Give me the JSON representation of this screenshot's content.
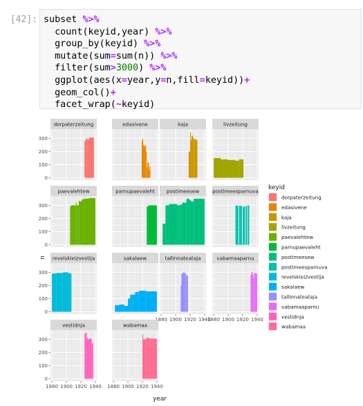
{
  "cell": {
    "prompt": "[42]:",
    "lines": [
      [
        {
          "t": "subset "
        },
        {
          "t": "%>%",
          "c": "op"
        }
      ],
      [
        {
          "t": "  count(keyid,year) "
        },
        {
          "t": "%>%",
          "c": "op"
        }
      ],
      [
        {
          "t": "  group_by(keyid) "
        },
        {
          "t": "%>%",
          "c": "op"
        }
      ],
      [
        {
          "t": "  mutate(sum"
        },
        {
          "t": "=",
          "c": "op"
        },
        {
          "t": "sum(n)) "
        },
        {
          "t": "%>%",
          "c": "op"
        }
      ],
      [
        {
          "t": "  filter(sum"
        },
        {
          "t": ">",
          "c": "op"
        },
        {
          "t": "3000",
          "c": "num"
        },
        {
          "t": ") "
        },
        {
          "t": "%>%",
          "c": "op"
        }
      ],
      [
        {
          "t": "  ggplot(aes(x"
        },
        {
          "t": "=",
          "c": "op"
        },
        {
          "t": "year,y"
        },
        {
          "t": "=",
          "c": "op"
        },
        {
          "t": "n,fill"
        },
        {
          "t": "=",
          "c": "op"
        },
        {
          "t": "keyid))"
        },
        {
          "t": "+",
          "c": "op"
        }
      ],
      [
        {
          "t": "  geom_col()"
        },
        {
          "t": "+",
          "c": "op"
        }
      ],
      [
        {
          "t": "  facet_wrap("
        },
        {
          "t": "~",
          "c": "op"
        },
        {
          "t": "keyid)"
        }
      ]
    ]
  },
  "chart_data": {
    "type": "bar",
    "facet_by": "keyid",
    "xlabel": "year",
    "ylabel": "n",
    "xlim": [
      1878,
      1942
    ],
    "ylim": [
      -18,
      370
    ],
    "x_ticks": [
      1880,
      1900,
      1920,
      1940
    ],
    "y_ticks": [
      0,
      100,
      200,
      300
    ],
    "grid": true,
    "legend": {
      "title": "keyid",
      "position": "right"
    },
    "facets": [
      {
        "name": "dorpaterzeitung",
        "color": "#F8766D",
        "segments": [
          [
            1925,
            1927,
            280
          ],
          [
            1927,
            1929,
            300
          ],
          [
            1929,
            1931,
            290
          ],
          [
            1931,
            1938,
            305
          ]
        ]
      },
      {
        "name": "edasivene",
        "color": "#E58700",
        "segments": [
          [
            1919,
            1920,
            280
          ],
          [
            1920,
            1921,
            300
          ],
          [
            1921,
            1922,
            250
          ],
          [
            1922,
            1924,
            240
          ],
          [
            1924,
            1925,
            250
          ],
          [
            1925,
            1926,
            200
          ],
          [
            1926,
            1927,
            80
          ],
          [
            1927,
            1929,
            115
          ],
          [
            1929,
            1930,
            60
          ],
          [
            1930,
            1931,
            90
          ]
        ]
      },
      {
        "name": "kaja",
        "color": "#C99800",
        "segments": [
          [
            1918,
            1920,
            200
          ],
          [
            1920,
            1921,
            345
          ],
          [
            1921,
            1922,
            285
          ],
          [
            1922,
            1924,
            320
          ],
          [
            1924,
            1926,
            300
          ],
          [
            1926,
            1930,
            290
          ]
        ]
      },
      {
        "name": "livzeitung",
        "color": "#A3A500",
        "segments": [
          [
            1880,
            1890,
            150
          ],
          [
            1890,
            1900,
            140
          ],
          [
            1900,
            1910,
            135
          ],
          [
            1910,
            1915,
            130
          ],
          [
            1915,
            1921,
            140
          ]
        ]
      },
      {
        "name": "paevalehtew",
        "color": "#6BB100",
        "segments": [
          [
            1905,
            1906,
            290
          ],
          [
            1906,
            1913,
            300
          ],
          [
            1913,
            1914,
            320
          ],
          [
            1914,
            1917,
            300
          ],
          [
            1917,
            1918,
            335
          ],
          [
            1918,
            1921,
            330
          ],
          [
            1921,
            1924,
            345
          ],
          [
            1924,
            1931,
            350
          ],
          [
            1931,
            1940,
            355
          ]
        ]
      },
      {
        "name": "parnupaevaleht",
        "color": "#00BA38",
        "segments": [
          [
            1926,
            1928,
            290
          ],
          [
            1928,
            1940,
            300
          ]
        ]
      },
      {
        "name": "postimeesew",
        "color": "#00BF7D",
        "segments": [
          [
            1882,
            1886,
            160
          ],
          [
            1886,
            1891,
            300
          ],
          [
            1891,
            1899,
            310
          ],
          [
            1899,
            1902,
            310
          ],
          [
            1902,
            1906,
            300
          ],
          [
            1906,
            1909,
            305
          ],
          [
            1909,
            1915,
            320
          ],
          [
            1915,
            1919,
            350
          ],
          [
            1919,
            1921,
            340
          ],
          [
            1921,
            1925,
            330
          ],
          [
            1925,
            1940,
            350
          ]
        ]
      },
      {
        "name": "postimeesparnuva",
        "color": "#00C0AF",
        "segments": [
          [
            1910,
            1912,
            300
          ],
          [
            1912,
            1914,
            295
          ],
          [
            1915,
            1917,
            298
          ],
          [
            1917,
            1919,
            295
          ],
          [
            1920,
            1923,
            290
          ],
          [
            1924,
            1926,
            295
          ],
          [
            1927,
            1929,
            300
          ]
        ]
      },
      {
        "name": "revelskieizvestija",
        "color": "#00BCD8",
        "segments": [
          [
            1880,
            1886,
            290
          ],
          [
            1886,
            1895,
            295
          ],
          [
            1895,
            1902,
            300
          ],
          [
            1902,
            1905,
            295
          ],
          [
            1905,
            1907,
            290
          ]
        ]
      },
      {
        "name": "sakalaew",
        "color": "#00B0F6",
        "segments": [
          [
            1882,
            1888,
            50
          ],
          [
            1888,
            1895,
            55
          ],
          [
            1895,
            1900,
            45
          ],
          [
            1900,
            1903,
            100
          ],
          [
            1903,
            1907,
            130
          ],
          [
            1907,
            1910,
            130
          ],
          [
            1910,
            1915,
            150
          ],
          [
            1915,
            1925,
            160
          ],
          [
            1925,
            1940,
            155
          ]
        ]
      },
      {
        "name": "tallinnateataja",
        "color": "#9590FF",
        "segments": [
          [
            1907,
            1908,
            200
          ],
          [
            1908,
            1910,
            290
          ],
          [
            1910,
            1912,
            300
          ],
          [
            1912,
            1914,
            295
          ],
          [
            1914,
            1915,
            280
          ],
          [
            1915,
            1917,
            275
          ]
        ]
      },
      {
        "name": "vabamaaparnu",
        "color": "#E76BF3",
        "segments": [
          [
            1931,
            1932,
            280
          ],
          [
            1932,
            1934,
            300
          ],
          [
            1934,
            1935,
            280
          ],
          [
            1935,
            1936,
            260
          ],
          [
            1936,
            1938,
            295
          ],
          [
            1938,
            1940,
            290
          ]
        ]
      },
      {
        "name": "vestidnja",
        "color": "#FF62BC",
        "segments": [
          [
            1925,
            1926,
            340
          ],
          [
            1926,
            1928,
            350
          ],
          [
            1928,
            1930,
            310
          ],
          [
            1930,
            1932,
            300
          ],
          [
            1932,
            1935,
            305
          ],
          [
            1935,
            1937,
            270
          ]
        ]
      },
      {
        "name": "wabamaa",
        "color": "#FF6C91",
        "segments": [
          [
            1920,
            1921,
            340
          ],
          [
            1921,
            1925,
            300
          ],
          [
            1925,
            1930,
            310
          ],
          [
            1930,
            1935,
            305
          ],
          [
            1935,
            1940,
            305
          ]
        ]
      }
    ]
  }
}
